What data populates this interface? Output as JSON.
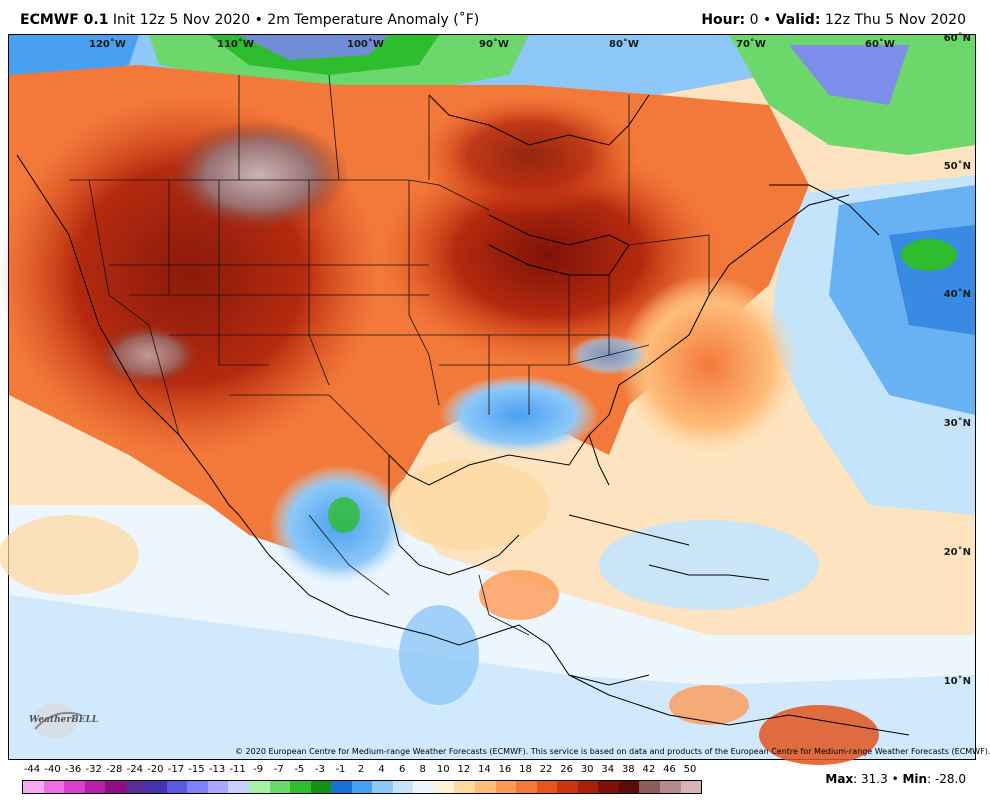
{
  "header": {
    "model": "ECMWF 0.1",
    "init": "Init 12z 5 Nov 2020",
    "sep": "•",
    "product": "2m Temperature Anomaly (˚F)",
    "hour_label": "Hour:",
    "hour_value": "0",
    "valid_label": "Valid:",
    "valid_value": "12z Thu 5 Nov 2020"
  },
  "map": {
    "lon_labels": [
      "120˚W",
      "110˚W",
      "100˚W",
      "90˚W",
      "80˚W",
      "70˚W",
      "60˚W"
    ],
    "lat_labels": [
      "60˚N",
      "50˚N",
      "40˚N",
      "30˚N",
      "20˚N",
      "10˚N"
    ],
    "copyright": "© 2020 European Centre for Medium-range Weather Forecasts (ECMWF). This service is based on data and products of the European Centre for Medium-range Weather Forecasts (ECMWF).",
    "logo_text": "WeatherBELL"
  },
  "legend": {
    "labels": [
      "-44",
      "-40",
      "-36",
      "-32",
      "-28",
      "-24",
      "-20",
      "-17",
      "-15",
      "-13",
      "-11",
      "-9",
      "-7",
      "-5",
      "-3",
      "-1",
      "2",
      "4",
      "6",
      "8",
      "10",
      "12",
      "14",
      "16",
      "18",
      "22",
      "26",
      "30",
      "34",
      "38",
      "42",
      "46",
      "50"
    ],
    "colors": [
      "#f7a8f0",
      "#ee6fe4",
      "#d93fcf",
      "#b81fa6",
      "#8d0f82",
      "#5c2a9a",
      "#4432b0",
      "#5a5ae0",
      "#8080ff",
      "#a8a8ff",
      "#c8d0ff",
      "#a8f0a8",
      "#6cd86c",
      "#2ebd2e",
      "#138f13",
      "#1a6fd8",
      "#4aa0f0",
      "#8dc8f8",
      "#c4e4fb",
      "#eef6fd",
      "#fff2d6",
      "#ffd9a0",
      "#ffbd7a",
      "#ff9a55",
      "#f2793a",
      "#e4551f",
      "#cc3512",
      "#a8200b",
      "#7d1207",
      "#5a0d08",
      "#8e5b5b",
      "#b58a8a",
      "#d6b4b4"
    ],
    "max_label": "Max",
    "max_value": "31.3",
    "min_label": "Min",
    "min_value": "-28.0"
  }
}
